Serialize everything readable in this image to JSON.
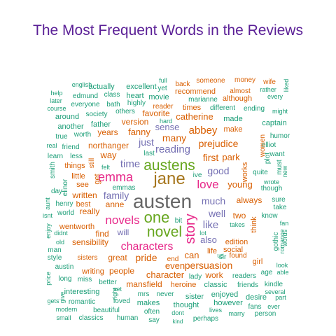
{
  "chart_data": {
    "type": "wordcloud",
    "title": "The Most Frequent Words in the Reviews",
    "colors": [
      "#1b9e77",
      "#d95f02",
      "#7570b3",
      "#e7298a",
      "#66a61e",
      "#e6ab02",
      "#a6761d",
      "#666666"
    ],
    "words": [
      {
        "text": "english",
        "c": 0
      },
      {
        "text": "full",
        "c": 0
      },
      {
        "text": "back",
        "c": 1
      },
      {
        "text": "someone",
        "c": 1
      },
      {
        "text": "money",
        "c": 1
      },
      {
        "text": "wife",
        "c": 1
      },
      {
        "text": "liked",
        "c": 0
      },
      {
        "text": "help",
        "c": 0
      },
      {
        "text": "actually",
        "c": 0
      },
      {
        "text": "excellent",
        "c": 0
      },
      {
        "text": "yet",
        "c": 0
      },
      {
        "text": "recommend",
        "c": 1
      },
      {
        "text": "almost",
        "c": 1
      },
      {
        "text": "rather",
        "c": 0
      },
      {
        "text": "later",
        "c": 0
      },
      {
        "text": "edmund",
        "c": 0
      },
      {
        "text": "class",
        "c": 0
      },
      {
        "text": "heart",
        "c": 0
      },
      {
        "text": "movie",
        "c": 0
      },
      {
        "text": "marianne",
        "c": 0
      },
      {
        "text": "although",
        "c": 1
      },
      {
        "text": "every",
        "c": 0
      },
      {
        "text": "course",
        "c": 0
      },
      {
        "text": "everyone",
        "c": 0
      },
      {
        "text": "bath",
        "c": 0
      },
      {
        "text": "highly",
        "c": 0
      },
      {
        "text": "reader",
        "c": 1
      },
      {
        "text": "times",
        "c": 1
      },
      {
        "text": "different",
        "c": 0
      },
      {
        "text": "ending",
        "c": 0
      },
      {
        "text": "might",
        "c": 0
      },
      {
        "text": "around",
        "c": 0
      },
      {
        "text": "society",
        "c": 0
      },
      {
        "text": "others",
        "c": 0
      },
      {
        "text": "favorite",
        "c": 1
      },
      {
        "text": "catherine",
        "c": 1
      },
      {
        "text": "made",
        "c": 0
      },
      {
        "text": "captain",
        "c": 0
      },
      {
        "text": "another",
        "c": 0
      },
      {
        "text": "father",
        "c": 0
      },
      {
        "text": "version",
        "c": 1
      },
      {
        "text": "make",
        "c": 1
      },
      {
        "text": "sense",
        "c": 2
      },
      {
        "text": "abbey",
        "c": 1
      },
      {
        "text": "true",
        "c": 0
      },
      {
        "text": "worth",
        "c": 0
      },
      {
        "text": "years",
        "c": 1
      },
      {
        "text": "fanny",
        "c": 1
      },
      {
        "text": "many",
        "c": 1
      },
      {
        "text": "humor",
        "c": 0
      },
      {
        "text": "real",
        "c": 0
      },
      {
        "text": "northanger",
        "c": 1
      },
      {
        "text": "just",
        "c": 2
      },
      {
        "text": "prejudice",
        "c": 1
      },
      {
        "text": "elliot",
        "c": 0
      },
      {
        "text": "friend",
        "c": 0
      },
      {
        "text": "reading",
        "c": 2
      },
      {
        "text": "want",
        "c": 0
      },
      {
        "text": "learn",
        "c": 0
      },
      {
        "text": "less",
        "c": 0
      },
      {
        "text": "way",
        "c": 1
      },
      {
        "text": "last",
        "c": 0
      },
      {
        "text": "first",
        "c": 1
      },
      {
        "text": "park",
        "c": 1
      },
      {
        "text": "things",
        "c": 1
      },
      {
        "text": "still",
        "c": 1
      },
      {
        "text": "time",
        "c": 2
      },
      {
        "text": "austens",
        "c": 4
      },
      {
        "text": "good",
        "c": 2
      },
      {
        "text": "quite",
        "c": 0
      },
      {
        "text": "little",
        "c": 1
      },
      {
        "text": "felt",
        "c": 0
      },
      {
        "text": "emma",
        "c": 3
      },
      {
        "text": "jane",
        "c": 6
      },
      {
        "text": "love",
        "c": 3
      },
      {
        "text": "young",
        "c": 1
      },
      {
        "text": "wrote",
        "c": 0
      },
      {
        "text": "see",
        "c": 1
      },
      {
        "text": "emmas",
        "c": 0
      },
      {
        "text": "though",
        "c": 0
      },
      {
        "text": "day",
        "c": 0
      },
      {
        "text": "written",
        "c": 1
      },
      {
        "text": "family",
        "c": 2
      },
      {
        "text": "always",
        "c": 1
      },
      {
        "text": "sure",
        "c": 0
      },
      {
        "text": "henry",
        "c": 0
      },
      {
        "text": "best",
        "c": 1
      },
      {
        "text": "anne",
        "c": 1
      },
      {
        "text": "austen",
        "c": 7
      },
      {
        "text": "much",
        "c": 2
      },
      {
        "text": "take",
        "c": 0
      },
      {
        "text": "really",
        "c": 1
      },
      {
        "text": "well",
        "c": 2
      },
      {
        "text": "two",
        "c": 1
      },
      {
        "text": "world",
        "c": 0
      },
      {
        "text": "novels",
        "c": 3
      },
      {
        "text": "one",
        "c": 4
      },
      {
        "text": "know",
        "c": 0
      },
      {
        "text": "wentworth",
        "c": 1
      },
      {
        "text": "like",
        "c": 2
      },
      {
        "text": "takes",
        "c": 0
      },
      {
        "text": "fan",
        "c": 0
      },
      {
        "text": "didnt",
        "c": 0
      },
      {
        "text": "will",
        "c": 2
      },
      {
        "text": "novel",
        "c": 4
      },
      {
        "text": "sensibility",
        "c": 1
      },
      {
        "text": "find",
        "c": 1
      },
      {
        "text": "story",
        "c": 3
      },
      {
        "text": "edition",
        "c": 1
      },
      {
        "text": "old",
        "c": 0
      },
      {
        "text": "characters",
        "c": 3
      },
      {
        "text": "also",
        "c": 2
      },
      {
        "text": "man",
        "c": 0
      },
      {
        "text": "can",
        "c": 1
      },
      {
        "text": "life",
        "c": 1
      },
      {
        "text": "social",
        "c": 1
      },
      {
        "text": "found",
        "c": 1
      },
      {
        "text": "sisters",
        "c": 1
      },
      {
        "text": "great",
        "c": 1
      },
      {
        "text": "pride",
        "c": 1
      },
      {
        "text": "end",
        "c": 1
      },
      {
        "text": "girl",
        "c": 1
      },
      {
        "text": "style",
        "c": 0
      },
      {
        "text": "even",
        "c": 1
      },
      {
        "text": "persuasion",
        "c": 1
      },
      {
        "text": "look",
        "c": 0
      },
      {
        "text": "austin",
        "c": 0
      },
      {
        "text": "writing",
        "c": 1
      },
      {
        "text": "people",
        "c": 1
      },
      {
        "text": "character",
        "c": 1
      },
      {
        "text": "work",
        "c": 1
      },
      {
        "text": "age",
        "c": 0
      },
      {
        "text": "able",
        "c": 0
      },
      {
        "text": "long",
        "c": 0
      },
      {
        "text": "miss",
        "c": 0
      },
      {
        "text": "better",
        "c": 0
      },
      {
        "text": "lady",
        "c": 0
      },
      {
        "text": "readers",
        "c": 0
      },
      {
        "text": "mansfield",
        "c": 1
      },
      {
        "text": "heroine",
        "c": 1
      },
      {
        "text": "classic",
        "c": 0
      },
      {
        "text": "friends",
        "c": 0
      },
      {
        "text": "kindle",
        "c": 0
      },
      {
        "text": "interesting",
        "c": 0
      },
      {
        "text": "set",
        "c": 0
      },
      {
        "text": "mrs",
        "c": 0
      },
      {
        "text": "never",
        "c": 0
      },
      {
        "text": "sister",
        "c": 0
      },
      {
        "text": "enjoyed",
        "c": 0
      },
      {
        "text": "desire",
        "c": 0
      },
      {
        "text": "part",
        "c": 0
      },
      {
        "text": "several",
        "c": 0
      },
      {
        "text": "gets",
        "c": 0
      },
      {
        "text": "romantic",
        "c": 0
      },
      {
        "text": "loved",
        "c": 0
      },
      {
        "text": "makes",
        "c": 0
      },
      {
        "text": "thought",
        "c": 0
      },
      {
        "text": "however",
        "c": 0
      },
      {
        "text": "fans",
        "c": 0
      },
      {
        "text": "ever",
        "c": 0
      },
      {
        "text": "modern",
        "c": 0
      },
      {
        "text": "beautiful",
        "c": 0
      },
      {
        "text": "often",
        "c": 0
      },
      {
        "text": "dont",
        "c": 0
      },
      {
        "text": "lives",
        "c": 0
      },
      {
        "text": "marry",
        "c": 0
      },
      {
        "text": "person",
        "c": 0
      },
      {
        "text": "small",
        "c": 0
      },
      {
        "text": "classics",
        "c": 0
      },
      {
        "text": "human",
        "c": 0
      },
      {
        "text": "say",
        "c": 0
      },
      {
        "text": "kind",
        "c": 0
      },
      {
        "text": "perhaps",
        "c": 0
      },
      {
        "text": "smith",
        "c": 0
      },
      {
        "text": "elinor",
        "c": 0
      },
      {
        "text": "aunt",
        "c": 0
      },
      {
        "text": "isnt",
        "c": 0
      },
      {
        "text": "enjoy",
        "c": 0
      },
      {
        "text": "price",
        "c": 0
      },
      {
        "text": "give",
        "c": 0
      },
      {
        "text": "get",
        "c": 1
      },
      {
        "text": "ive",
        "c": 0
      },
      {
        "text": "hard",
        "c": 0
      },
      {
        "text": "bit",
        "c": 0
      },
      {
        "text": "lot",
        "c": 0
      },
      {
        "text": "us",
        "c": 0
      },
      {
        "text": "works",
        "c": 1
      },
      {
        "text": "sir",
        "c": 0
      },
      {
        "text": "think",
        "c": 1
      },
      {
        "text": "women",
        "c": 1
      },
      {
        "text": "plot",
        "c": 0
      },
      {
        "text": "must",
        "c": 0
      },
      {
        "text": "new",
        "c": 0
      },
      {
        "text": "gothic",
        "c": 0
      },
      {
        "text": "romance",
        "c": 0
      },
      {
        "text": "words",
        "c": 0
      },
      {
        "text": "right",
        "c": 0
      }
    ]
  }
}
